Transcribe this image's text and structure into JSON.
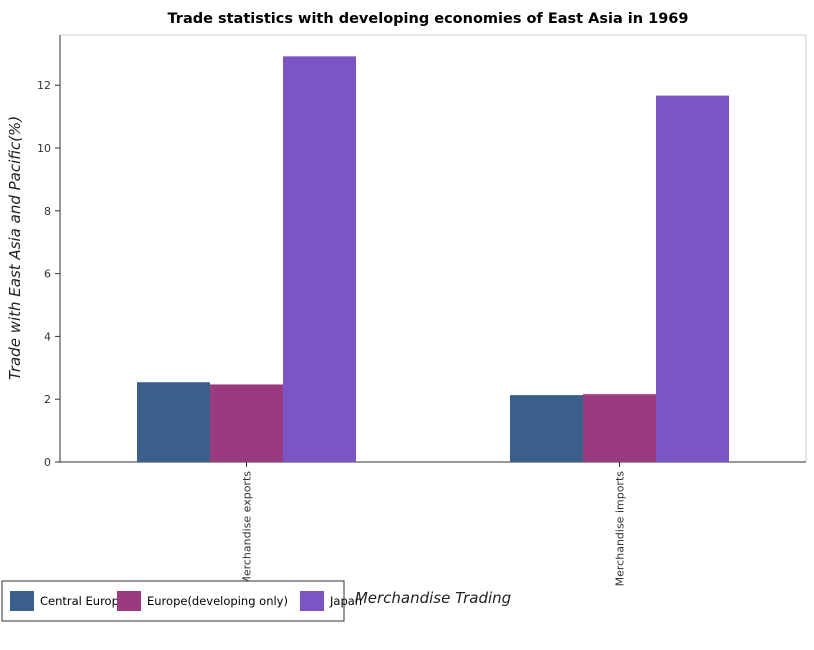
{
  "chart_data": {
    "type": "bar",
    "title": "Trade statistics with developing economies of East Asia in 1969",
    "xlabel": "Merchandise Trading",
    "ylabel": "Trade with East Asia and Pacific(%)",
    "categories": [
      "Merchandise exports",
      "Merchandise imports"
    ],
    "series": [
      {
        "name": "Central Europe",
        "color": "#3a5f8a",
        "values": [
          2.54,
          2.13
        ]
      },
      {
        "name": "Europe(developing only)",
        "color": "#9b3b7f",
        "values": [
          2.47,
          2.16
        ]
      },
      {
        "name": "Japan",
        "color": "#7b55c4",
        "values": [
          12.92,
          11.67
        ]
      }
    ],
    "ylim": [
      0,
      13.6
    ],
    "yticks": [
      0,
      2,
      4,
      6,
      8,
      10,
      12
    ],
    "grid": false,
    "legend_position": "bottom-left"
  }
}
